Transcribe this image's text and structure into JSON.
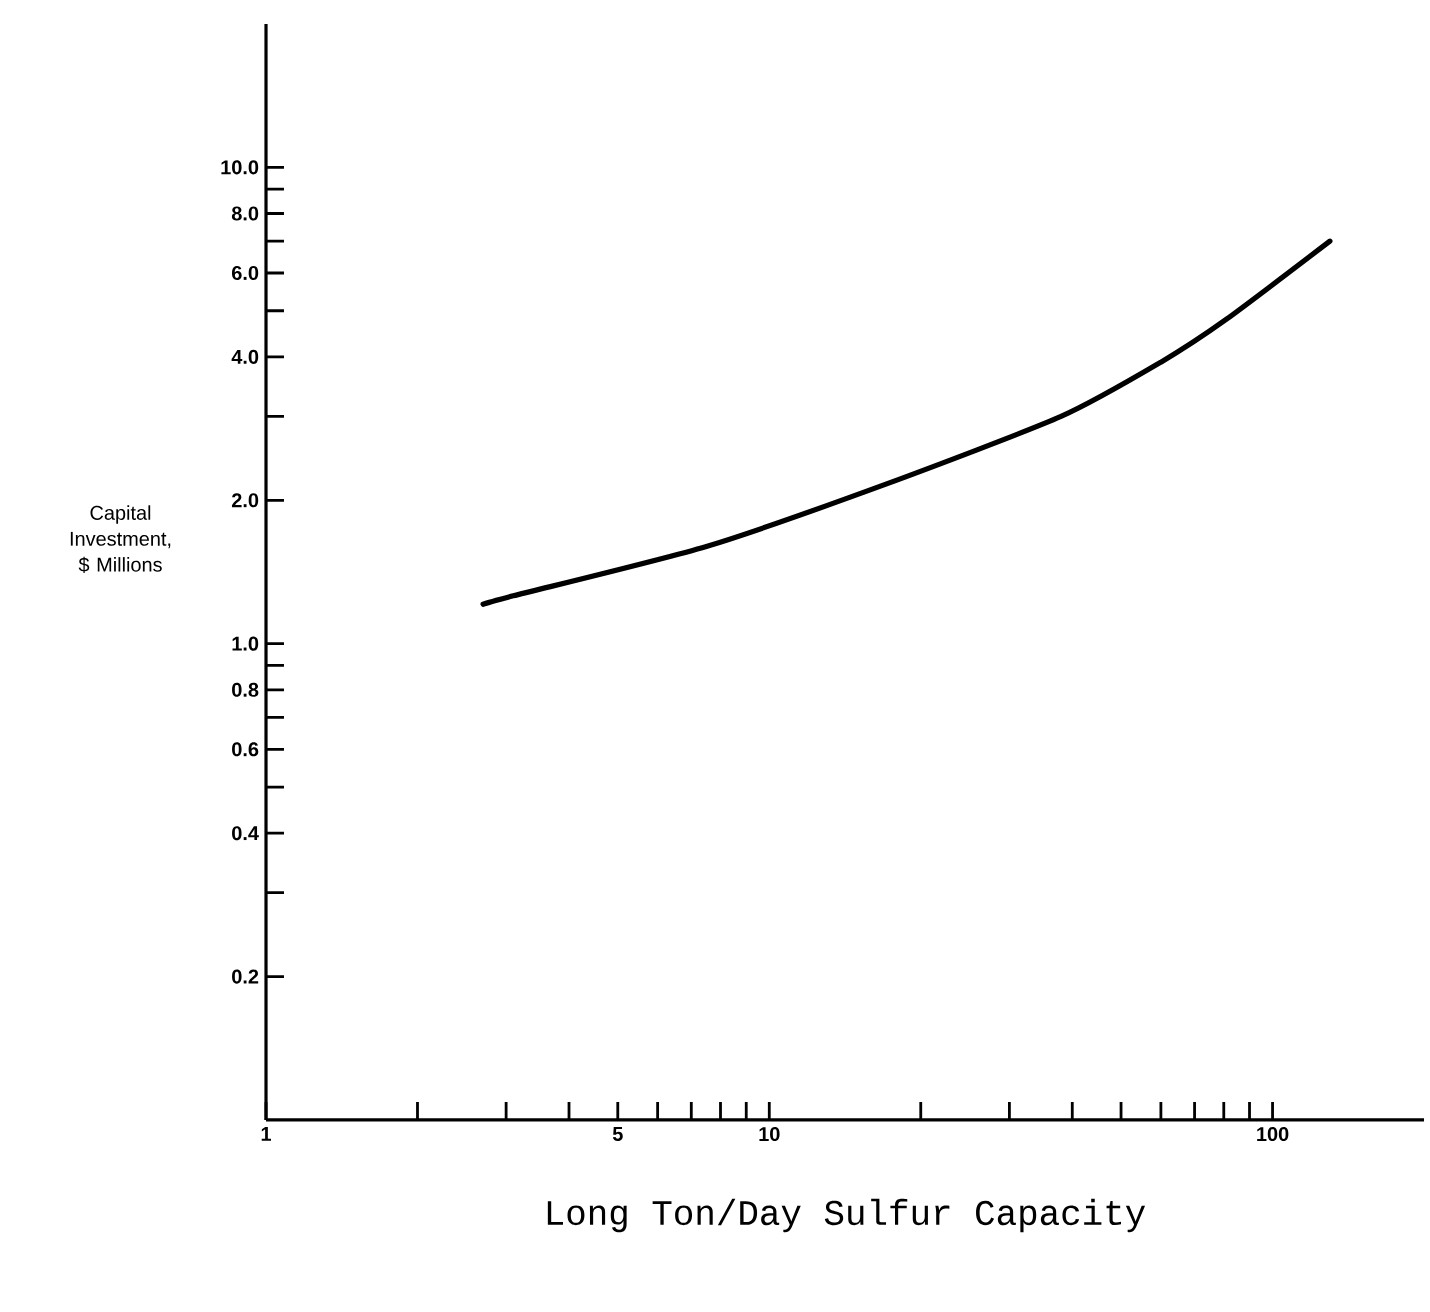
{
  "chart_data": {
    "type": "line",
    "xlabel": "Long Ton/Day Sulfur Capacity",
    "ylabel": "Capital Investment, $ Millions",
    "log": "xy",
    "grid": false,
    "marker": "none",
    "line_style": "solid",
    "xlim": [
      1,
      200
    ],
    "ylim": [
      0.1,
      20
    ],
    "xticks": [
      1,
      {
        "value": 2,
        "label": null
      },
      {
        "value": 3,
        "label": null
      },
      {
        "value": 4,
        "label": null
      },
      5,
      {
        "value": 6,
        "label": null
      },
      {
        "value": 7,
        "label": null
      },
      {
        "value": 8,
        "label": null
      },
      {
        "value": 9,
        "label": null
      },
      10,
      {
        "value": 20,
        "label": null
      },
      {
        "value": 30,
        "label": null
      },
      {
        "value": 40,
        "label": null
      },
      {
        "value": 50,
        "label": null
      },
      {
        "value": 60,
        "label": null
      },
      {
        "value": 70,
        "label": null
      },
      {
        "value": 80,
        "label": null
      },
      {
        "value": 90,
        "label": null
      },
      100
    ],
    "yticks": [
      0.2,
      {
        "value": 0.3,
        "label": null
      },
      0.4,
      {
        "value": 0.5,
        "label": null
      },
      0.6,
      {
        "value": 0.7,
        "label": null
      },
      0.8,
      {
        "value": 0.9,
        "label": null
      },
      {
        "value": 1,
        "label": "1.0"
      },
      {
        "value": 2,
        "label": "2.0"
      },
      {
        "value": 3,
        "label": null
      },
      {
        "value": 4,
        "label": "4.0"
      },
      {
        "value": 5,
        "label": null
      },
      {
        "value": 6,
        "label": "6.0"
      },
      {
        "value": 7,
        "label": null
      },
      {
        "value": 8,
        "label": "8.0"
      },
      {
        "value": 9,
        "label": null
      },
      {
        "value": 10,
        "label": "10.0"
      }
    ],
    "series": [
      {
        "color": "#000000",
        "x": [
          2.7,
          3.1,
          7.5,
          17,
          38,
          60,
          81,
          130
        ],
        "values": [
          1.21,
          1.26,
          1.6,
          2.16,
          3.0,
          3.9,
          4.8,
          7.0
        ]
      }
    ]
  }
}
